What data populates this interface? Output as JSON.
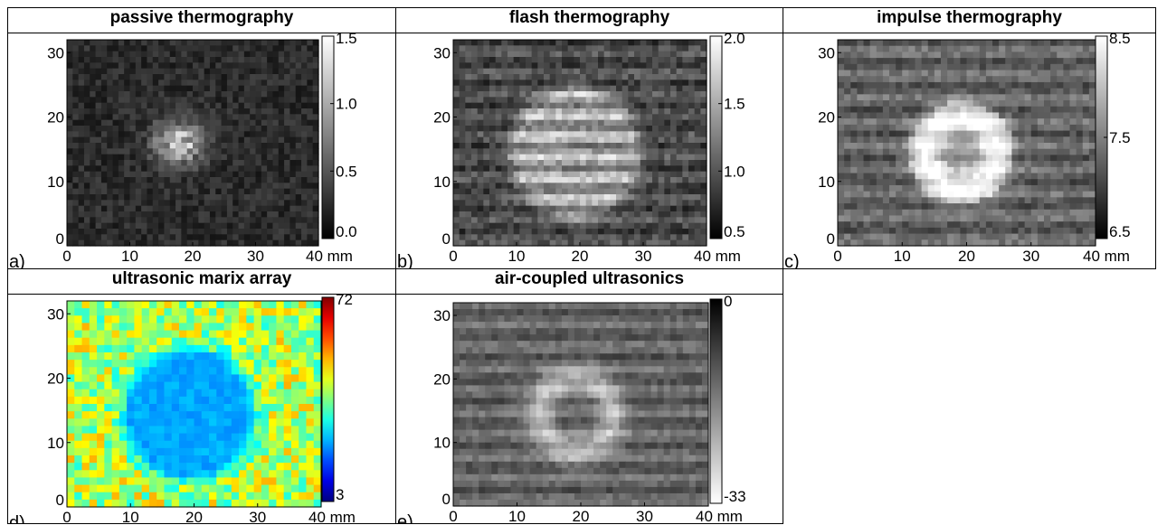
{
  "figure": {
    "panels": [
      {
        "title": "passive thermography",
        "letter": "a)",
        "colormap": "gray",
        "colorbar_ticks": [
          "1.5",
          "1.0",
          "0.5",
          "0.0"
        ],
        "colorbar_range": [
          0.0,
          1.5
        ],
        "defect": "bright irregular patch near center"
      },
      {
        "title": "flash thermography",
        "letter": "b)",
        "colormap": "gray",
        "colorbar_ticks": [
          "2.0",
          "1.5",
          "1.0",
          "0.5"
        ],
        "colorbar_range": [
          0.5,
          2.0
        ],
        "defect": "bright circular patch with horizontal stripes"
      },
      {
        "title": "impulse thermography",
        "letter": "c)",
        "colormap": "gray",
        "colorbar_ticks": [
          "8.5",
          "7.5",
          "6.5"
        ],
        "colorbar_range": [
          6.5,
          8.5
        ],
        "defect": "bright ring with darker center"
      },
      {
        "title": "ultrasonic marix array",
        "letter": "d)",
        "colormap": "jet",
        "colorbar_ticks": [
          "72",
          "3"
        ],
        "colorbar_range": [
          3,
          72
        ],
        "defect": "blue region surrounded by yellow/green"
      },
      {
        "title": "air-coupled ultrasonics",
        "letter": "e)",
        "colormap": "gray-reversed",
        "colorbar_ticks": [
          "0",
          "-33"
        ],
        "colorbar_range": [
          -33,
          0
        ],
        "defect": "bright ring on dark striped background"
      }
    ],
    "axes": {
      "x_ticks": [
        "0",
        "10",
        "20",
        "30",
        "40 mm"
      ],
      "y_ticks": [
        "30",
        "20",
        "10",
        "0"
      ],
      "x_range": [
        0,
        40
      ],
      "y_range": [
        0,
        32
      ]
    }
  }
}
